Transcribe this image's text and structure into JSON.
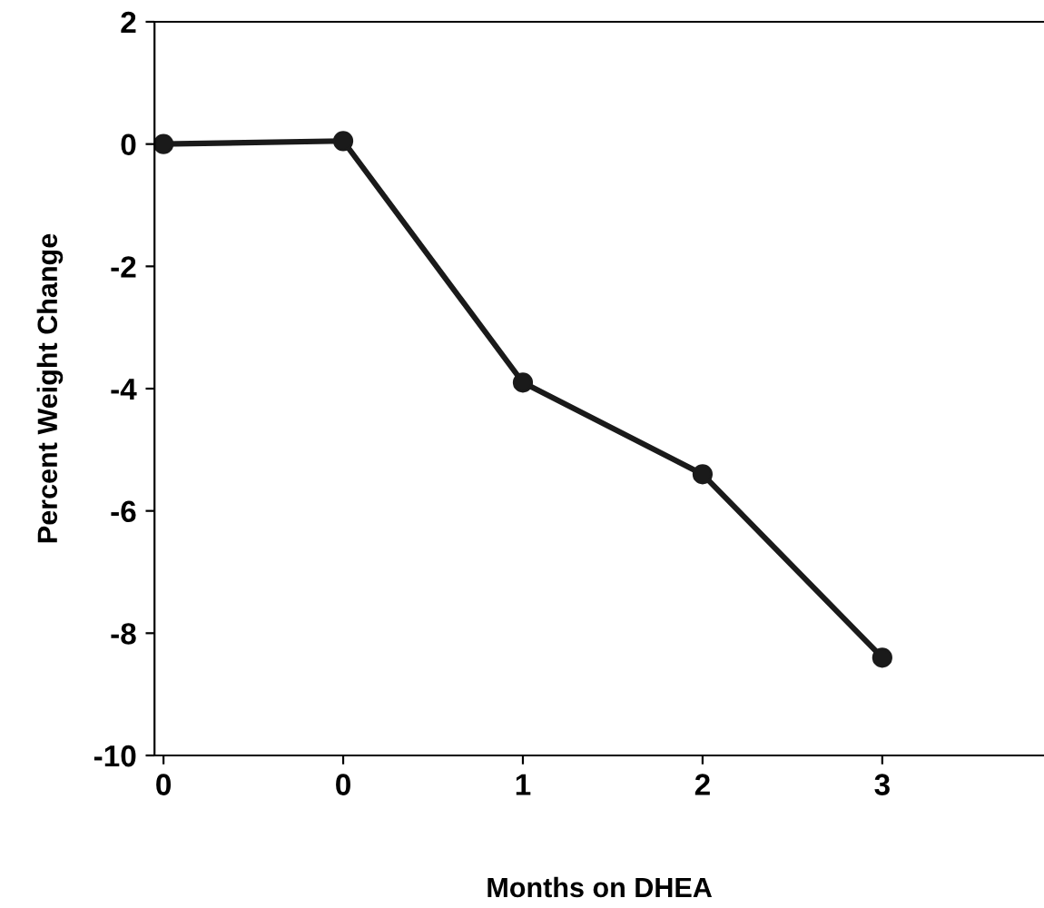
{
  "chart_data": {
    "type": "line",
    "xlabel": "Months on DHEA",
    "ylabel": "Percent Weight Change",
    "categories": [
      "0",
      "0",
      "1",
      "2",
      "3"
    ],
    "series": [
      {
        "color": "#1a1a1a",
        "values": [
          0,
          0.05,
          -3.9,
          -5.4,
          -8.4
        ]
      }
    ],
    "ylim": [
      -10,
      2
    ],
    "yticks": [
      -10,
      -8,
      -6,
      -4,
      -2,
      0,
      2
    ],
    "marker": "circle",
    "line_style": "solid",
    "grid": false,
    "legend": false
  }
}
